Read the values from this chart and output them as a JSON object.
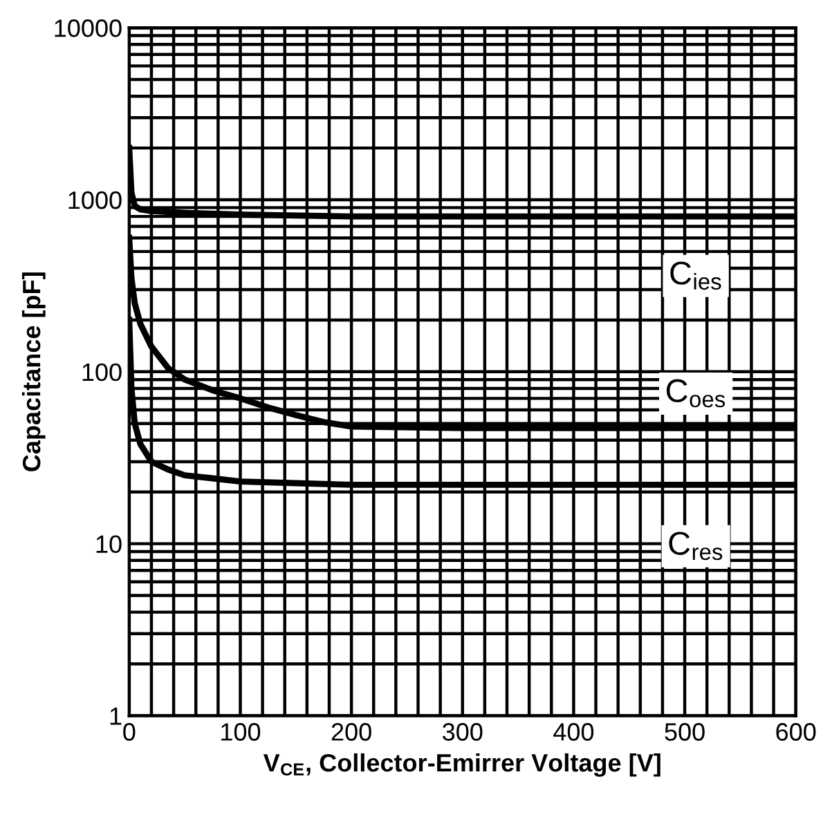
{
  "chart_data": {
    "type": "line",
    "xlabel": "V$_{CE}$, Collector-Emirrer Voltage [V]",
    "ylabel": "Capacitance [pF]",
    "log": "y",
    "grid": true,
    "xlim": [
      0,
      600
    ],
    "xticks": [
      0,
      100,
      200,
      300,
      400,
      500,
      600
    ],
    "ylim": [
      1,
      10000
    ],
    "yticks": [
      1,
      10,
      100,
      1000,
      10000
    ],
    "series": [
      {
        "name": "C$_{ies}$",
        "color": "#000000",
        "x": [
          0,
          2,
          5,
          10,
          20,
          50,
          100,
          200,
          300,
          400,
          500,
          600
        ],
        "values": [
          2000,
          1100,
          920,
          880,
          860,
          840,
          820,
          800,
          800,
          800,
          800,
          800
        ]
      },
      {
        "name": "C$_{oes}$",
        "color": "#000000",
        "x": [
          0,
          2,
          5,
          10,
          20,
          35,
          50,
          75,
          100,
          125,
          150,
          175,
          200,
          300,
          400,
          500,
          600
        ],
        "values": [
          600,
          350,
          250,
          190,
          140,
          105,
          90,
          78,
          70,
          62,
          56,
          51,
          48,
          47,
          47,
          47,
          47
        ]
      },
      {
        "name": "C$_{res}$",
        "color": "#000000",
        "x": [
          0,
          2,
          5,
          10,
          20,
          35,
          50,
          75,
          100,
          150,
          200,
          300,
          400,
          500,
          600
        ],
        "values": [
          200,
          80,
          50,
          38,
          30,
          27,
          25,
          24,
          23,
          22.5,
          22,
          22,
          22,
          22,
          22
        ]
      }
    ]
  }
}
